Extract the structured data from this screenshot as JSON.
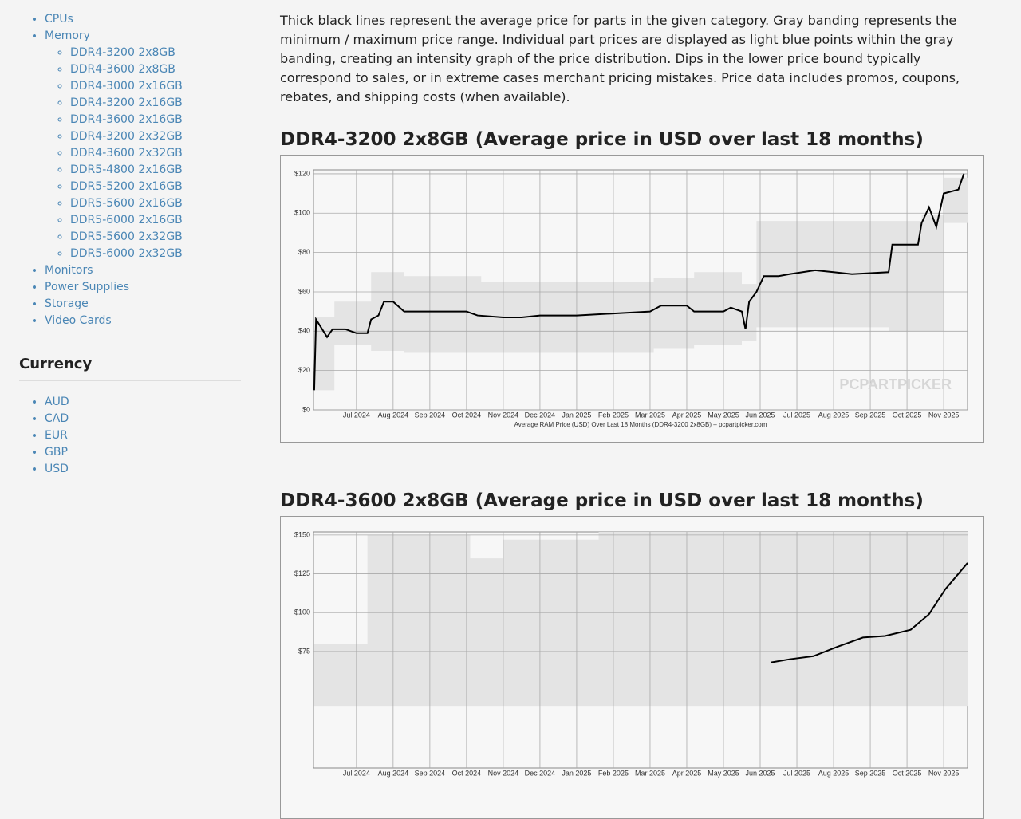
{
  "sidebar": {
    "parts": [
      {
        "label": "CPUs"
      },
      {
        "label": "Memory",
        "children": [
          "DDR4-3200 2x8GB",
          "DDR4-3600 2x8GB",
          "DDR4-3000 2x16GB",
          "DDR4-3200 2x16GB",
          "DDR4-3600 2x16GB",
          "DDR4-3200 2x32GB",
          "DDR4-3600 2x32GB",
          "DDR5-4800 2x16GB",
          "DDR5-5200 2x16GB",
          "DDR5-5600 2x16GB",
          "DDR5-6000 2x16GB",
          "DDR5-5600 2x32GB",
          "DDR5-6000 2x32GB"
        ]
      },
      {
        "label": "Monitors"
      },
      {
        "label": "Power Supplies"
      },
      {
        "label": "Storage"
      },
      {
        "label": "Video Cards"
      }
    ],
    "currency_title": "Currency",
    "currencies": [
      "AUD",
      "CAD",
      "EUR",
      "GBP",
      "USD"
    ]
  },
  "intro": "Thick black lines represent the average price for parts in the given category. Gray banding represents the minimum / maximum price range. Individual part prices are displayed as light blue points within the gray banding, creating an intensity graph of the price distribution. Dips in the lower price bound typically correspond to sales, or in extreme cases merchant pricing mistakes. Price data includes promos, coupons, rebates, and shipping costs (when available).",
  "chart_data": [
    {
      "type": "line",
      "title": "DDR4-3200 2x8GB (Average price in USD over last 18 months)",
      "x_label": "Average RAM Price (USD) Over Last 18 Months (DDR4-3200 2x8GB) – pcpartpicker.com",
      "watermark": "PCPARTPICKER",
      "xlim": [
        -1.17,
        16.65
      ],
      "ylim": [
        0,
        122
      ],
      "xticks": [
        {
          "value": 0,
          "label": "Jul 2024"
        },
        {
          "value": 1,
          "label": "Aug 2024"
        },
        {
          "value": 2,
          "label": "Sep 2024"
        },
        {
          "value": 3,
          "label": "Oct 2024"
        },
        {
          "value": 4,
          "label": "Nov 2024"
        },
        {
          "value": 5,
          "label": "Dec 2024"
        },
        {
          "value": 6,
          "label": "Jan 2025"
        },
        {
          "value": 7,
          "label": "Feb 2025"
        },
        {
          "value": 8,
          "label": "Mar 2025"
        },
        {
          "value": 9,
          "label": "Apr 2025"
        },
        {
          "value": 10,
          "label": "May 2025"
        },
        {
          "value": 11,
          "label": "Jun 2025"
        },
        {
          "value": 12,
          "label": "Jul 2025"
        },
        {
          "value": 13,
          "label": "Aug 2025"
        },
        {
          "value": 14,
          "label": "Sep 2025"
        },
        {
          "value": 15,
          "label": "Oct 2025"
        },
        {
          "value": 16,
          "label": "Nov 2025"
        }
      ],
      "yticks": [
        {
          "value": 0,
          "label": "$0"
        },
        {
          "value": 20,
          "label": "$20"
        },
        {
          "value": 40,
          "label": "$40"
        },
        {
          "value": 60,
          "label": "$60"
        },
        {
          "value": 80,
          "label": "$80"
        },
        {
          "value": 100,
          "label": "$100"
        },
        {
          "value": 120,
          "label": "$120"
        }
      ],
      "grid": true,
      "band": {
        "color": "#e4e4e4",
        "x": [
          -1.15,
          -0.6,
          0.4,
          1.3,
          3.4,
          8.1,
          9.2,
          10.5,
          10.9,
          14.5,
          15.4,
          16.0,
          16.65
        ],
        "low": [
          10,
          33,
          30,
          29,
          29,
          31,
          33,
          35,
          42,
          40,
          40,
          95,
          95
        ],
        "high": [
          47,
          55,
          70,
          68,
          65,
          67,
          70,
          64,
          96,
          96,
          99,
          118,
          120
        ]
      },
      "color": "#000000",
      "x": [
        -1.15,
        -1.1,
        -0.9,
        -0.8,
        -0.65,
        -0.3,
        0,
        0.3,
        0.4,
        0.6,
        0.75,
        1,
        1.3,
        2,
        3,
        3.3,
        4,
        4.5,
        5,
        6,
        7,
        8,
        8.3,
        9,
        9.2,
        10,
        10.2,
        10.5,
        10.6,
        10.7,
        10.9,
        11.1,
        11.5,
        11.8,
        12.5,
        13,
        13.5,
        14.5,
        14.6,
        15,
        15.3,
        15.4,
        15.6,
        15.8,
        16,
        16.4,
        16.55
      ],
      "values": [
        10,
        46,
        40,
        37,
        41,
        41,
        39,
        39,
        46,
        48,
        55,
        55,
        50,
        50,
        50,
        48,
        47,
        47,
        48,
        48,
        49,
        50,
        53,
        53,
        50,
        50,
        52,
        50,
        41,
        55,
        60,
        68,
        68,
        69,
        71,
        70,
        69,
        70,
        84,
        84,
        84,
        95,
        103,
        93,
        110,
        112,
        120
      ]
    },
    {
      "type": "line",
      "title": "DDR4-3600 2x8GB (Average price in USD over last 18 months)",
      "xlim": [
        -1.17,
        16.65
      ],
      "ylim": [
        0,
        152
      ],
      "xticks": [
        {
          "value": 0,
          "label": "Jul 2024"
        },
        {
          "value": 1,
          "label": "Aug 2024"
        },
        {
          "value": 2,
          "label": "Sep 2024"
        },
        {
          "value": 3,
          "label": "Oct 2024"
        },
        {
          "value": 4,
          "label": "Nov 2024"
        },
        {
          "value": 5,
          "label": "Dec 2024"
        },
        {
          "value": 6,
          "label": "Jan 2025"
        },
        {
          "value": 7,
          "label": "Feb 2025"
        },
        {
          "value": 8,
          "label": "Mar 2025"
        },
        {
          "value": 9,
          "label": "Apr 2025"
        },
        {
          "value": 10,
          "label": "May 2025"
        },
        {
          "value": 11,
          "label": "Jun 2025"
        },
        {
          "value": 12,
          "label": "Jul 2025"
        },
        {
          "value": 13,
          "label": "Aug 2025"
        },
        {
          "value": 14,
          "label": "Sep 2025"
        },
        {
          "value": 15,
          "label": "Oct 2025"
        },
        {
          "value": 16,
          "label": "Nov 2025"
        }
      ],
      "yticks": [
        {
          "value": 75,
          "label": "$75"
        },
        {
          "value": 100,
          "label": "$100"
        },
        {
          "value": 125,
          "label": "$125"
        },
        {
          "value": 150,
          "label": "$150"
        }
      ],
      "grid": true,
      "band": {
        "color": "#e4e4e4",
        "x": [
          -1.15,
          0.3,
          3.1,
          4.0,
          6.6,
          16.65
        ],
        "low": [
          40,
          40,
          40,
          40,
          40,
          40
        ],
        "high": [
          80,
          150,
          135,
          147,
          152,
          152
        ]
      },
      "color": "#000000",
      "x": [
        11.3,
        11.8,
        12.45,
        13.1,
        13.8,
        14.4,
        15.1,
        15.6,
        16.04,
        16.4,
        16.65
      ],
      "values": [
        68,
        70,
        72,
        78,
        84,
        85,
        89,
        99,
        115,
        125,
        132
      ]
    }
  ]
}
